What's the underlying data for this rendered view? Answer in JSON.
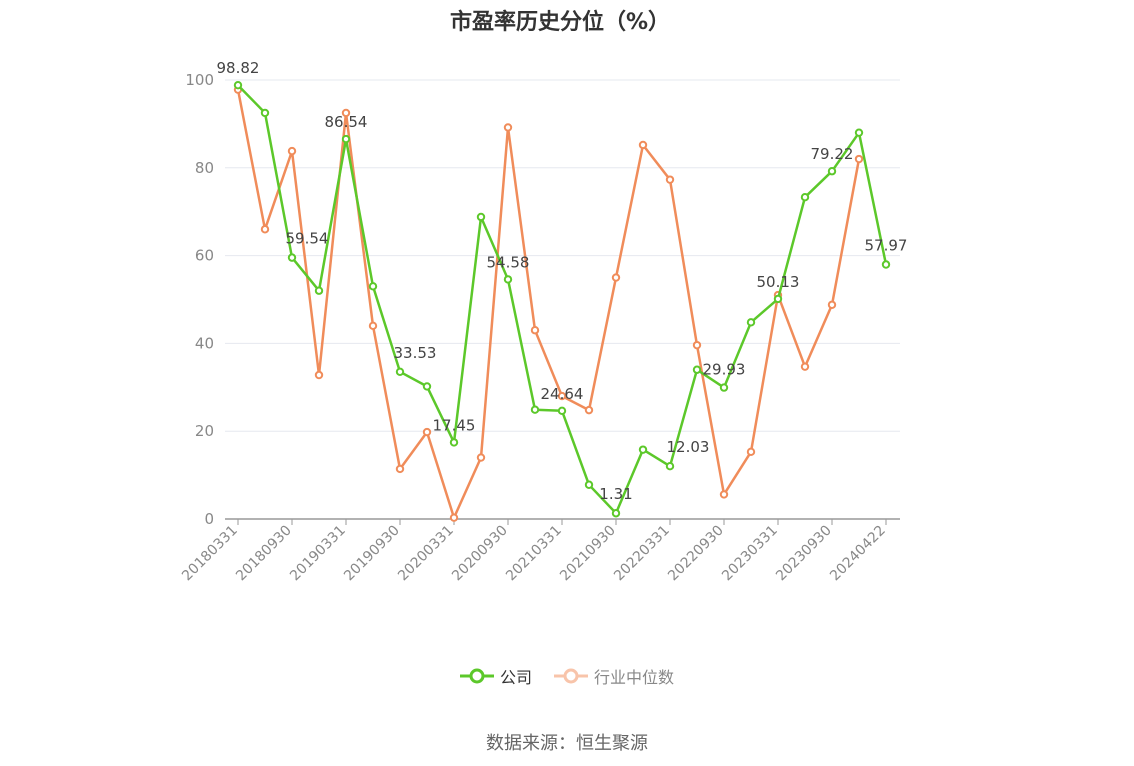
{
  "chart_data": {
    "type": "line",
    "title": "市盈率历史分位（%）",
    "ylim": [
      0,
      100
    ],
    "yticks": [
      0,
      20,
      40,
      60,
      80,
      100
    ],
    "xticks": [
      "20180331",
      "20180930",
      "20190331",
      "20190930",
      "20200331",
      "20200930",
      "20210331",
      "20210930",
      "20220331",
      "20220930",
      "20230331",
      "20230930",
      "20240422"
    ],
    "grid": true,
    "legend_position": "bottom-center",
    "series": [
      {
        "name": "公司",
        "color": "#5cc82a",
        "values": [
          98.82,
          92.5,
          59.54,
          52.0,
          86.54,
          53.0,
          33.53,
          30.2,
          17.45,
          68.8,
          54.58,
          24.9,
          24.64,
          7.8,
          1.31,
          15.8,
          12.03,
          34.0,
          29.93,
          44.8,
          50.13,
          73.3,
          79.22,
          88.0,
          57.97
        ],
        "labels": [
          "98.82",
          "",
          "59.54",
          "",
          "86.54",
          "",
          "33.53",
          "",
          "17.45",
          "",
          "54.58",
          "",
          "24.64",
          "",
          "1.31",
          "",
          "12.03",
          "",
          "29.93",
          "",
          "50.13",
          "",
          "79.22",
          "",
          "57.97"
        ]
      },
      {
        "name": "行业中位数",
        "color": "#f08c5a",
        "values": [
          97.8,
          66.0,
          83.8,
          32.8,
          92.5,
          44.0,
          11.4,
          19.8,
          0.3,
          14.0,
          89.2,
          43.0,
          28.0,
          24.8,
          55.0,
          85.2,
          77.3,
          39.6,
          5.6,
          15.3,
          51.0,
          34.7,
          48.8,
          82.0,
          null
        ]
      }
    ]
  },
  "footer": {
    "source": "数据来源：恒生聚源"
  }
}
